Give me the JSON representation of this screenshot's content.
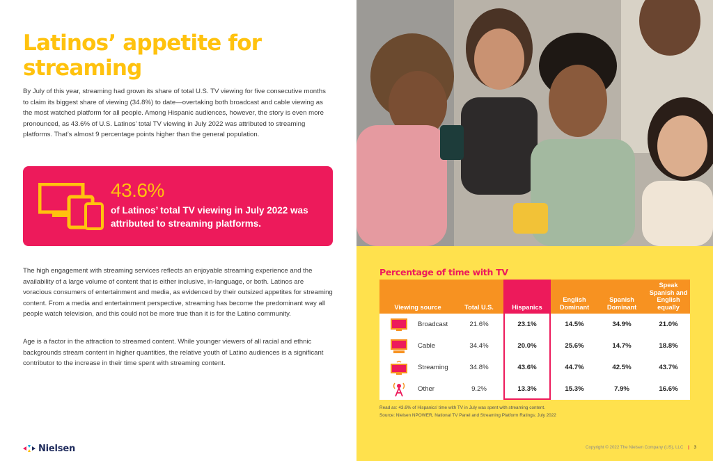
{
  "page": {
    "title": "Latinos’ appetite for streaming",
    "p1": "By July of this year, streaming had grown its share of total U.S. TV viewing for five consecutive months to claim its biggest share of viewing (34.8%) to date—overtaking both broadcast and cable viewing as the most watched platform for all people. Among Hispanic audiences, however, the story is even more pronounced, as 43.6% of U.S. Latinos’ total TV viewing in July 2022 was attributed to streaming platforms. That’s almost 9 percentage points higher than the general population.",
    "p2": "The high engagement with streaming services reflects an enjoyable streaming experience and the availability of a large volume of content that is either inclusive, in-language, or both. Latinos are voracious consumers of entertainment and media, as evidenced by their outsized appetites for streaming content. From a media and entertainment perspective, streaming has become the predominant way all people watch television, and this could not be more true than it is for the Latino community.",
    "p3": "Age is a factor in the attraction to streamed content. While younger viewers of all racial and ethnic backgrounds stream content in higher quantities, the relative youth of Latino audiences is a significant contributor to the increase in their time spent with streaming content.",
    "callout": {
      "value": "43.6%",
      "text": "of Latinos’ total TV viewing in July 2022 was attributed to streaming platforms."
    },
    "logo": "Nielsen",
    "page_number": "3",
    "copyright": "Copyright © 2022 The Nielsen Company (US), LLC",
    "colors": {
      "yellow": "#ffc20e",
      "pink": "#ed1a5b",
      "orange": "#f79221",
      "panel": "#ffe14d"
    }
  },
  "table": {
    "title": "Percentage of time with TV",
    "headers": [
      "Viewing source",
      "Total U.S.",
      "Hispanics",
      "English Dominant",
      "Spanish Dominant",
      "Speak Spanish and English equally"
    ],
    "rows": [
      {
        "icon": "tv-broadcast-icon",
        "label": "Broadcast",
        "values": [
          "21.6%",
          "23.1%",
          "14.5%",
          "34.9%",
          "21.0%"
        ]
      },
      {
        "icon": "tv-cable-icon",
        "label": "Cable",
        "values": [
          "34.4%",
          "20.0%",
          "25.6%",
          "14.7%",
          "18.8%"
        ]
      },
      {
        "icon": "tv-streaming-icon",
        "label": "Streaming",
        "values": [
          "34.8%",
          "43.6%",
          "44.7%",
          "42.5%",
          "43.7%"
        ]
      },
      {
        "icon": "antenna-icon",
        "label": "Other",
        "values": [
          "9.2%",
          "13.3%",
          "15.3%",
          "7.9%",
          "16.6%"
        ]
      }
    ],
    "read_as": "Read as: 43.6% of Hispanics’ time with TV in July was spent with streaming content.",
    "source": "Source: Nielsen NPOWER, National TV Panel and Streaming Platform Ratings; July 2022"
  }
}
